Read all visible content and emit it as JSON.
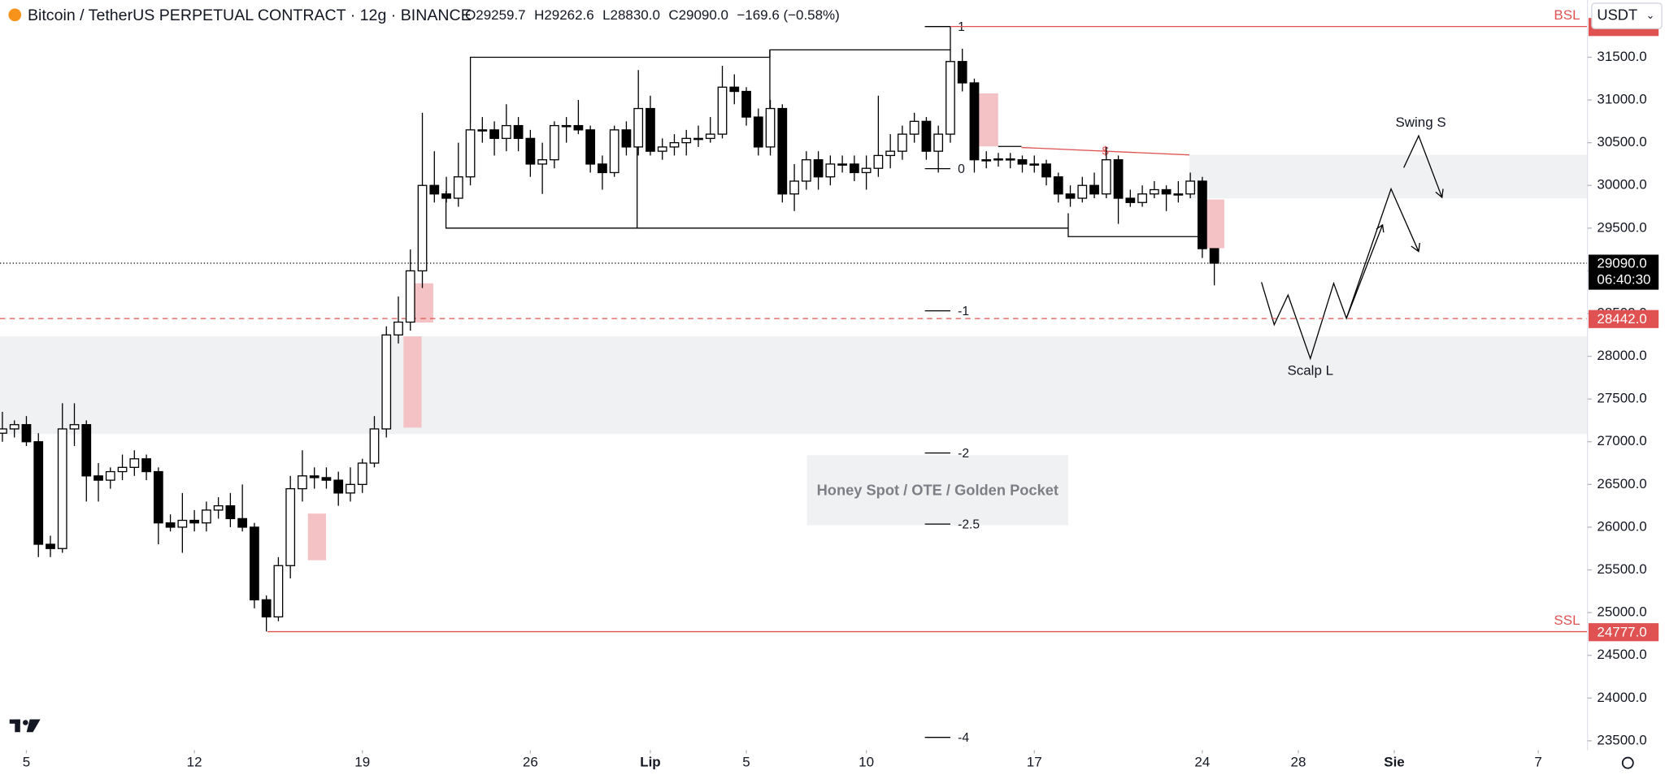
{
  "chart_data": {
    "type": "candlestick",
    "title": "Bitcoin / TetherUS PERPETUAL CONTRACT · 12g · BINANCE",
    "ohlc_labels": [
      "O29259.7",
      "H29262.6",
      "L28830.0",
      "C29090.0",
      "−169.6 (−0.58%)"
    ],
    "currency": "USDT",
    "up_color": "#ffffff",
    "down_color": "#000000",
    "border_color": "#000000",
    "xlim": [
      -0.2,
      132.1
    ],
    "xticks": [
      {
        "value": 2,
        "label": "5"
      },
      {
        "value": 16,
        "label": "12"
      },
      {
        "value": 30,
        "label": "19"
      },
      {
        "value": 44,
        "label": "26"
      },
      {
        "value": 54,
        "label": "Lip"
      },
      {
        "value": 62,
        "label": "5"
      },
      {
        "value": 72,
        "label": "10"
      },
      {
        "value": 86,
        "label": "17"
      },
      {
        "value": 100,
        "label": "24"
      },
      {
        "value": 108,
        "label": "28"
      },
      {
        "value": 116,
        "label": "Sie"
      },
      {
        "value": 128,
        "label": "7"
      }
    ],
    "ylim": [
      23390,
      32170
    ],
    "yticks": [
      {
        "value": 23500,
        "label": "23500.0"
      },
      {
        "value": 24000,
        "label": "24000.0"
      },
      {
        "value": 24500,
        "label": "24500.0"
      },
      {
        "value": 25000,
        "label": "25000.0"
      },
      {
        "value": 25500,
        "label": "25500.0"
      },
      {
        "value": 26000,
        "label": "26000.0"
      },
      {
        "value": 26500,
        "label": "26500.0"
      },
      {
        "value": 27000,
        "label": "27000.0"
      },
      {
        "value": 27500,
        "label": "27500.0"
      },
      {
        "value": 28000,
        "label": "28000.0"
      },
      {
        "value": 28500,
        "label": "28500.0"
      },
      {
        "value": 29000,
        "label": "29000.0"
      },
      {
        "value": 29500,
        "label": "29500.0"
      },
      {
        "value": 30000,
        "label": "30000.0"
      },
      {
        "value": 30500,
        "label": "30500.0"
      },
      {
        "value": 31000,
        "label": "31000.0"
      },
      {
        "value": 31500,
        "label": "31500.0"
      }
    ],
    "candles": [
      [
        27100,
        27350,
        27000,
        27150
      ],
      [
        27150,
        27250,
        27050,
        27200
      ],
      [
        27200,
        27300,
        26950,
        27000
      ],
      [
        27000,
        27100,
        25650,
        25800
      ],
      [
        25800,
        25900,
        25650,
        25750
      ],
      [
        25750,
        27450,
        25700,
        27150
      ],
      [
        27150,
        27450,
        26950,
        27200
      ],
      [
        27200,
        27250,
        26300,
        26600
      ],
      [
        26600,
        26750,
        26300,
        26550
      ],
      [
        26550,
        26700,
        26450,
        26650
      ],
      [
        26650,
        26850,
        26550,
        26700
      ],
      [
        26700,
        26900,
        26600,
        26800
      ],
      [
        26800,
        26850,
        26550,
        26650
      ],
      [
        26650,
        26700,
        25800,
        26050
      ],
      [
        26050,
        26150,
        25950,
        26000
      ],
      [
        26000,
        26400,
        25700,
        26080
      ],
      [
        26080,
        26200,
        25950,
        26050
      ],
      [
        26050,
        26300,
        25950,
        26200
      ],
      [
        26200,
        26350,
        26100,
        26250
      ],
      [
        26250,
        26400,
        26000,
        26100
      ],
      [
        26100,
        26500,
        25950,
        26000
      ],
      [
        26000,
        26050,
        25050,
        25150
      ],
      [
        25150,
        25200,
        24780,
        24950
      ],
      [
        24950,
        25650,
        24900,
        25550
      ],
      [
        25550,
        26600,
        25400,
        26450
      ],
      [
        26450,
        26900,
        26300,
        26600
      ],
      [
        26600,
        26700,
        26450,
        26580
      ],
      [
        26580,
        26700,
        26450,
        26550
      ],
      [
        26550,
        26650,
        26250,
        26400
      ],
      [
        26400,
        26700,
        26300,
        26500
      ],
      [
        26500,
        26800,
        26400,
        26750
      ],
      [
        26750,
        27300,
        26700,
        27150
      ],
      [
        27150,
        28350,
        27050,
        28250
      ],
      [
        28250,
        28700,
        28150,
        28400
      ],
      [
        28400,
        29250,
        28300,
        29000
      ],
      [
        29000,
        30850,
        28800,
        30000
      ],
      [
        30000,
        30400,
        29800,
        29900
      ],
      [
        29900,
        30100,
        29800,
        29850
      ],
      [
        29850,
        30500,
        29750,
        30100
      ],
      [
        30100,
        30750,
        30000,
        30650
      ],
      [
        30650,
        30800,
        30500,
        30650
      ],
      [
        30650,
        30750,
        30350,
        30550
      ],
      [
        30550,
        30950,
        30400,
        30700
      ],
      [
        30700,
        30800,
        30400,
        30550
      ],
      [
        30550,
        30650,
        30100,
        30250
      ],
      [
        30250,
        30500,
        29900,
        30300
      ],
      [
        30300,
        30750,
        30200,
        30700
      ],
      [
        30700,
        30800,
        30500,
        30700
      ],
      [
        30700,
        31000,
        30600,
        30650
      ],
      [
        30650,
        30700,
        30150,
        30250
      ],
      [
        30250,
        30350,
        29950,
        30150
      ],
      [
        30150,
        30700,
        30100,
        30650
      ],
      [
        30650,
        30750,
        30350,
        30450
      ],
      [
        30450,
        31350,
        30350,
        30900
      ],
      [
        30900,
        31050,
        30350,
        30400
      ],
      [
        30400,
        30550,
        30300,
        30450
      ],
      [
        30450,
        30600,
        30350,
        30500
      ],
      [
        30500,
        30650,
        30350,
        30550
      ],
      [
        30550,
        30700,
        30450,
        30550
      ],
      [
        30550,
        30800,
        30500,
        30600
      ],
      [
        30600,
        31400,
        30550,
        31150
      ],
      [
        31150,
        31300,
        30950,
        31100
      ],
      [
        31100,
        31150,
        30700,
        30800
      ],
      [
        30800,
        30900,
        30350,
        30450
      ],
      [
        30450,
        31000,
        30350,
        30900
      ],
      [
        30900,
        30950,
        29800,
        29900
      ],
      [
        29900,
        30250,
        29700,
        30050
      ],
      [
        30050,
        30400,
        29950,
        30300
      ],
      [
        30300,
        30400,
        29950,
        30100
      ],
      [
        30100,
        30350,
        30000,
        30250
      ],
      [
        30250,
        30350,
        30150,
        30250
      ],
      [
        30250,
        30350,
        30050,
        30150
      ],
      [
        30150,
        30350,
        29950,
        30200
      ],
      [
        30200,
        31050,
        30100,
        30350
      ],
      [
        30350,
        30600,
        30200,
        30400
      ],
      [
        30400,
        30700,
        30300,
        30600
      ],
      [
        30600,
        30850,
        30500,
        30750
      ],
      [
        30750,
        30800,
        30300,
        30400
      ],
      [
        30400,
        30700,
        30150,
        30600
      ],
      [
        30600,
        31450,
        30500,
        31450
      ],
      [
        31450,
        31600,
        31100,
        31200
      ],
      [
        31200,
        31250,
        30150,
        30300
      ],
      [
        30300,
        30400,
        30200,
        30300
      ],
      [
        30300,
        30380,
        30220,
        30310
      ],
      [
        30310,
        30380,
        30200,
        30300
      ],
      [
        30300,
        30350,
        30150,
        30250
      ],
      [
        30250,
        30350,
        30150,
        30250
      ],
      [
        30250,
        30300,
        30000,
        30100
      ],
      [
        30100,
        30150,
        29800,
        29900
      ],
      [
        29900,
        30000,
        29750,
        29850
      ],
      [
        29850,
        30100,
        29800,
        30000
      ],
      [
        30000,
        30150,
        29850,
        29900
      ],
      [
        29900,
        30450,
        29850,
        30300
      ],
      [
        30300,
        30350,
        29550,
        29850
      ],
      [
        29850,
        29950,
        29750,
        29800
      ],
      [
        29800,
        30000,
        29750,
        29900
      ],
      [
        29900,
        30050,
        29850,
        29950
      ],
      [
        29950,
        30000,
        29700,
        29900
      ],
      [
        29900,
        30050,
        29800,
        29900
      ],
      [
        29900,
        30150,
        29850,
        30050
      ],
      [
        30050,
        30100,
        29150,
        29259.7
      ],
      [
        29259.7,
        29262.6,
        28830,
        29090
      ]
    ],
    "last_price_label": "29090.0",
    "countdown": "06:40:30",
    "levels": [
      {
        "name": "BSL",
        "value": 31860,
        "color": "#e05252"
      },
      {
        "name": "SSL",
        "value": 24777,
        "label": "24777.0",
        "color": "#e05252"
      }
    ],
    "alert_line": {
      "value": 28442,
      "label": "28442.0",
      "color": "#e05252"
    },
    "fib": [
      {
        "value": 31860,
        "label": "1"
      },
      {
        "value": 30196,
        "label": "0"
      },
      {
        "value": 28532,
        "label": "-1"
      },
      {
        "value": 26868,
        "label": "-2"
      },
      {
        "value": 26036,
        "label": "-2.5"
      },
      {
        "value": 23540,
        "label": "-4"
      }
    ],
    "annotations": {
      "zone": "Honey Spot / OTE / Golden Pocket",
      "scalp": "Scalp L",
      "swing": "Swing S",
      "sweep": "$"
    }
  }
}
